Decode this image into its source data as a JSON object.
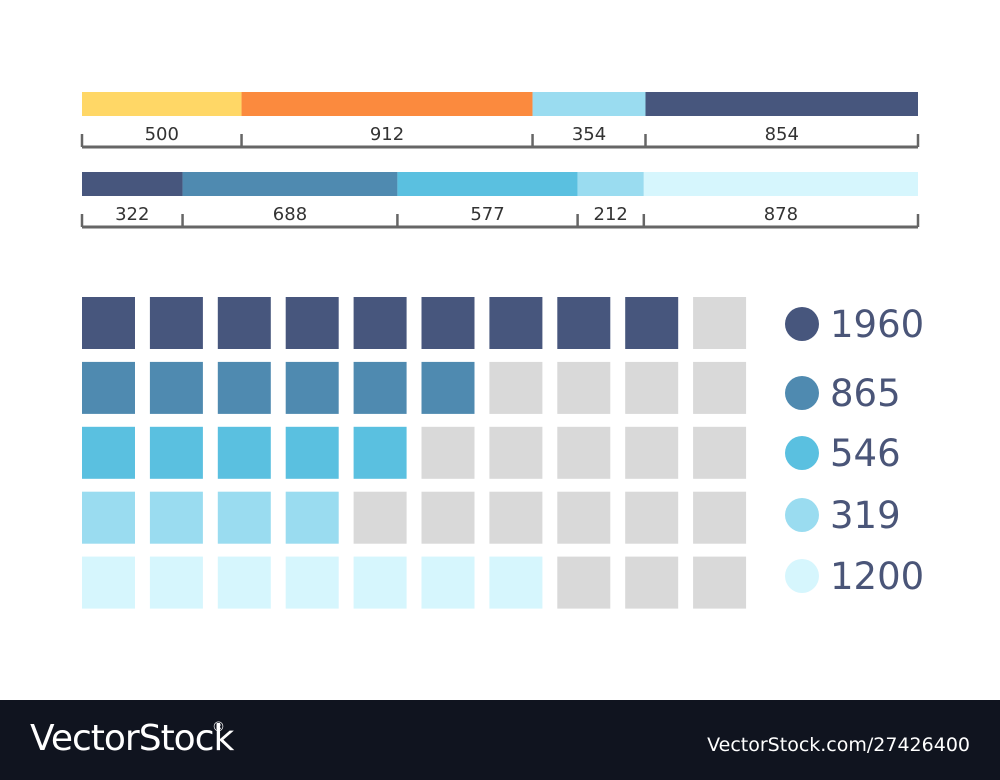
{
  "chart_data": [
    {
      "type": "bar",
      "orientation": "horizontal-stacked",
      "categories": [
        "500",
        "912",
        "354",
        "854"
      ],
      "values": [
        500,
        912,
        354,
        854
      ],
      "colors": [
        "#ffd766",
        "#fb8a3e",
        "#9adcf0",
        "#47567d"
      ]
    },
    {
      "type": "bar",
      "orientation": "horizontal-stacked",
      "categories": [
        "322",
        "688",
        "577",
        "212",
        "878"
      ],
      "values": [
        322,
        688,
        577,
        212,
        878
      ],
      "colors": [
        "#47567d",
        "#4f8ab0",
        "#5ac0e0",
        "#9adcf0",
        "#d6f6fd"
      ]
    },
    {
      "type": "waffle",
      "columns": 10,
      "empty_color": "#d9d9d9",
      "rows": [
        {
          "label": "1960",
          "filled": 9,
          "color": "#47567d"
        },
        {
          "label": "865",
          "filled": 6,
          "color": "#4f8ab0"
        },
        {
          "label": "546",
          "filled": 5,
          "color": "#5ac0e0"
        },
        {
          "label": "319",
          "filled": 4,
          "color": "#9adcf0"
        },
        {
          "label": "1200",
          "filled": 7,
          "color": "#d6f6fd"
        }
      ]
    }
  ],
  "footer": {
    "brand": "VectorStock",
    "brand_mark": "®",
    "reference": "VectorStock.com/27426400"
  }
}
